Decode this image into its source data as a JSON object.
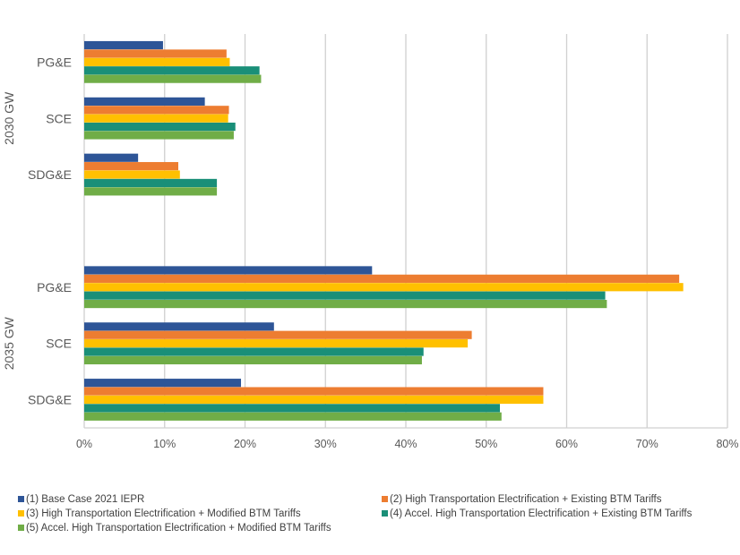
{
  "chart_data": {
    "type": "bar",
    "orientation": "horizontal",
    "title": "",
    "xlabel": "",
    "ylabel": "",
    "xlim": [
      0,
      80
    ],
    "x_tick_labels": [
      "0%",
      "10%",
      "20%",
      "30%",
      "40%",
      "50%",
      "60%",
      "70%",
      "80%"
    ],
    "x_ticks": [
      0,
      10,
      20,
      30,
      40,
      50,
      60,
      70,
      80
    ],
    "value_unit": "%",
    "grid": "vertical",
    "legend_position": "bottom",
    "groups": [
      {
        "name": "2030 GW",
        "categories": [
          "PG&E",
          "SCE",
          "SDG&E"
        ],
        "series": [
          {
            "name": "(1) Base Case 2021 IEPR",
            "values": [
              9.8,
              15.0,
              6.7
            ]
          },
          {
            "name": "(2) High Transportation Electrification + Existing BTM Tariffs",
            "values": [
              17.7,
              18.0,
              11.7
            ]
          },
          {
            "name": "(3) High Transportation Electrification + Modified BTM Tariffs",
            "values": [
              18.1,
              17.9,
              11.9
            ]
          },
          {
            "name": "(4) Accel. High Transportation Electrification + Existing BTM Tariffs",
            "values": [
              21.8,
              18.8,
              16.5
            ]
          },
          {
            "name": "(5) Accel. High Transportation Electrification + Modified BTM Tariffs",
            "values": [
              22.0,
              18.6,
              16.5
            ]
          }
        ]
      },
      {
        "name": "2035 GW",
        "categories": [
          "PG&E",
          "SCE",
          "SDG&E"
        ],
        "series": [
          {
            "name": "(1) Base Case 2021 IEPR",
            "values": [
              35.8,
              23.6,
              19.5
            ]
          },
          {
            "name": "(2) High Transportation Electrification + Existing BTM Tariffs",
            "values": [
              74.0,
              48.2,
              57.1
            ]
          },
          {
            "name": "(3) High Transportation Electrification + Modified BTM Tariffs",
            "values": [
              74.5,
              47.7,
              57.1
            ]
          },
          {
            "name": "(4) Accel. High Transportation Electrification + Existing BTM Tariffs",
            "values": [
              64.8,
              42.2,
              51.7
            ]
          },
          {
            "name": "(5) Accel. High Transportation Electrification + Modified BTM Tariffs",
            "values": [
              65.0,
              42.0,
              51.9
            ]
          }
        ]
      }
    ],
    "legend": [
      {
        "label": "(1) Base Case 2021 IEPR",
        "color": "#2E5597"
      },
      {
        "label": "(2) High Transportation Electrification + Existing BTM Tariffs",
        "color": "#ED7D31"
      },
      {
        "label": "(3) High Transportation Electrification + Modified BTM Tariffs",
        "color": "#FFC000"
      },
      {
        "label": "(4) Accel. High Transportation Electrification + Existing BTM Tariffs",
        "color": "#1A8F78"
      },
      {
        "label": "(5) Accel. High Transportation Electrification + Modified BTM Tariffs",
        "color": "#70AD47"
      }
    ]
  }
}
